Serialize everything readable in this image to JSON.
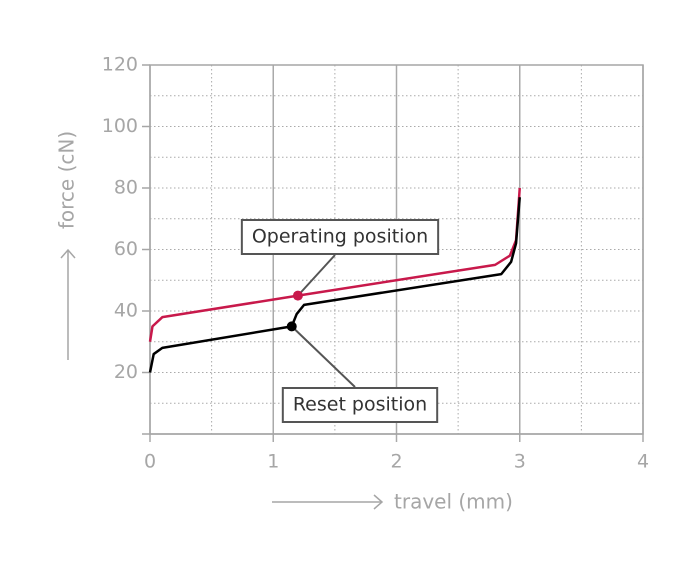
{
  "chart_data": {
    "type": "line",
    "x_label": "travel (mm)",
    "y_label": "force (cN)",
    "xlim": [
      0,
      4
    ],
    "ylim": [
      0,
      120
    ],
    "xticks": [
      0,
      1,
      2,
      3,
      4
    ],
    "yticks": [
      20,
      40,
      60,
      80,
      100,
      120
    ],
    "minor_xticks": [
      0.5,
      1.5,
      2.5,
      3.5
    ],
    "minor_yticks": [
      10,
      30,
      50,
      70,
      90,
      110
    ],
    "grid": true,
    "series": [
      {
        "name": "Operating",
        "color": "#c8194b",
        "x": [
          0,
          0.02,
          0.1,
          1.2,
          2.8,
          2.92,
          2.97,
          3.0
        ],
        "values": [
          30,
          35,
          38,
          45,
          55,
          58,
          63,
          80
        ]
      },
      {
        "name": "Reset",
        "color": "#000000",
        "x": [
          0,
          0.03,
          0.1,
          1.15,
          1.19,
          1.25,
          2.85,
          2.93,
          2.97,
          3.0
        ],
        "values": [
          20,
          26,
          28,
          35,
          39,
          42,
          52,
          56,
          62,
          77
        ]
      }
    ],
    "annotations": [
      {
        "text": "Operating position",
        "x": 1.2,
        "y": 45,
        "color": "#c8194b"
      },
      {
        "text": "Reset position",
        "x": 1.15,
        "y": 35,
        "color": "#000000"
      }
    ]
  }
}
